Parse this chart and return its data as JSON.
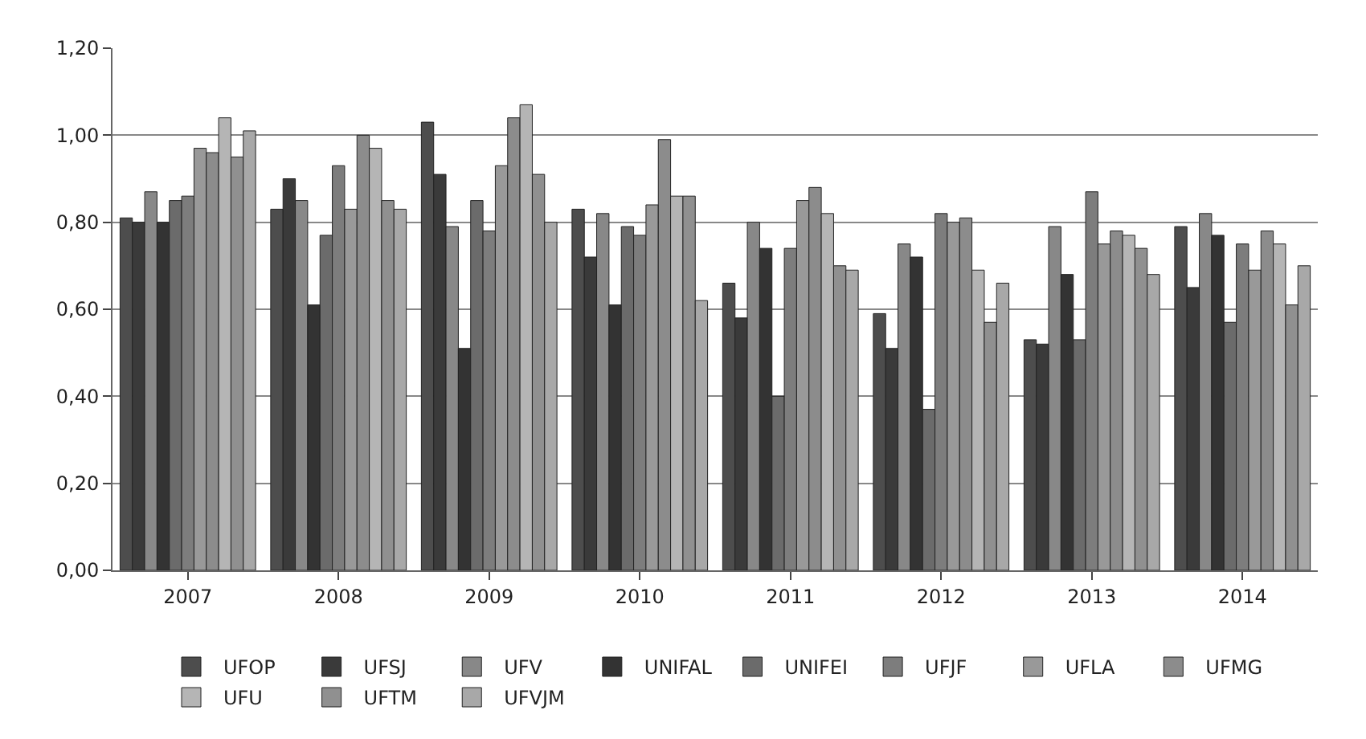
{
  "chart_data": {
    "type": "bar",
    "categories": [
      "2007",
      "2008",
      "2009",
      "2010",
      "2011",
      "2012",
      "2013",
      "2014"
    ],
    "series": [
      {
        "name": "UFOP",
        "color": "#4d4d4d",
        "values": [
          0.81,
          0.83,
          1.03,
          0.83,
          0.66,
          0.59,
          0.53,
          0.79
        ]
      },
      {
        "name": "UFSJ",
        "color": "#3a3a3a",
        "values": [
          0.8,
          0.9,
          0.91,
          0.72,
          0.58,
          0.51,
          0.52,
          0.65
        ]
      },
      {
        "name": "UFV",
        "color": "#888888",
        "values": [
          0.87,
          0.85,
          0.79,
          0.82,
          0.8,
          0.75,
          0.79,
          0.82
        ]
      },
      {
        "name": "UNIFAL",
        "color": "#333333",
        "values": [
          0.8,
          0.61,
          0.51,
          0.61,
          0.74,
          0.72,
          0.68,
          0.77
        ]
      },
      {
        "name": "UNIFEI",
        "color": "#6b6b6b",
        "values": [
          0.85,
          0.77,
          0.85,
          0.79,
          0.4,
          0.37,
          0.53,
          0.57
        ]
      },
      {
        "name": "UFJF",
        "color": "#7d7d7d",
        "values": [
          0.86,
          0.93,
          0.78,
          0.77,
          0.74,
          0.82,
          0.87,
          0.75
        ]
      },
      {
        "name": "UFLA",
        "color": "#999999",
        "values": [
          0.97,
          0.83,
          0.93,
          0.84,
          0.85,
          0.8,
          0.75,
          0.69
        ]
      },
      {
        "name": "UFMG",
        "color": "#8c8c8c",
        "values": [
          0.96,
          1.0,
          1.04,
          0.99,
          0.88,
          0.81,
          0.78,
          0.78
        ]
      },
      {
        "name": "UFU",
        "color": "#b5b5b5",
        "values": [
          1.04,
          0.97,
          1.07,
          0.86,
          0.82,
          0.69,
          0.77,
          0.75
        ]
      },
      {
        "name": "UFTM",
        "color": "#909090",
        "values": [
          0.95,
          0.85,
          0.91,
          0.86,
          0.7,
          0.57,
          0.74,
          0.61
        ]
      },
      {
        "name": "UFVJM",
        "color": "#a8a8a8",
        "values": [
          1.01,
          0.83,
          0.8,
          0.62,
          0.69,
          0.66,
          0.68,
          0.7
        ]
      }
    ],
    "ylim": [
      0,
      1.2
    ],
    "yticks": [
      {
        "value": 0,
        "label": "0,00"
      },
      {
        "value": 0.2,
        "label": "0,20"
      },
      {
        "value": 0.4,
        "label": "0,40"
      },
      {
        "value": 0.6,
        "label": "0,60"
      },
      {
        "value": 0.8,
        "label": "0,80"
      },
      {
        "value": 1.0,
        "label": "1,00"
      },
      {
        "value": 1.2,
        "label": "1,20"
      }
    ],
    "grid": "y",
    "legend": "bottom"
  }
}
